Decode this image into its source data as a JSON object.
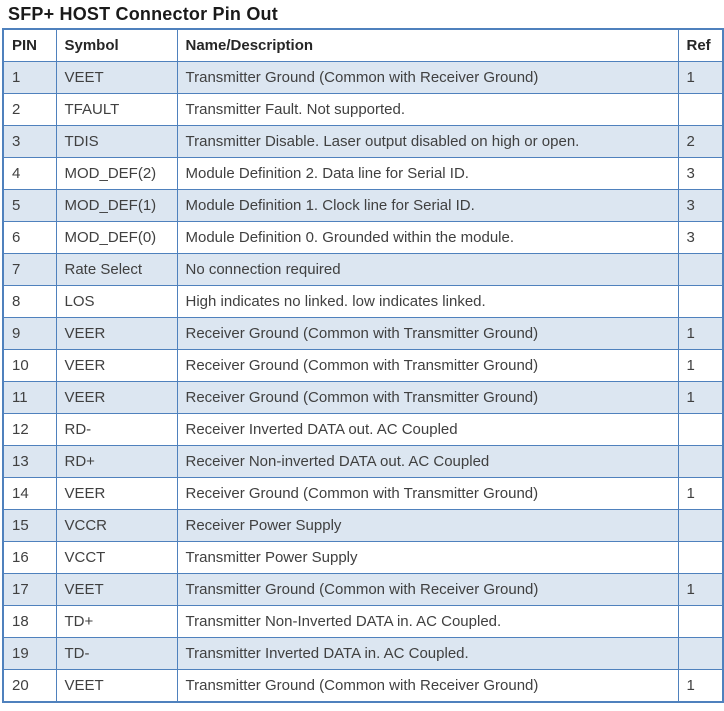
{
  "title": "SFP+ HOST Connector Pin Out",
  "colors": {
    "row_shade": "#dce6f1",
    "grid_border": "#4f81bd",
    "header_text": "#262626",
    "body_text": "#404040",
    "title_text": "#1a1a1a"
  },
  "table": {
    "headers": {
      "pin": "PIN",
      "symbol": "Symbol",
      "description": "Name/Description",
      "ref": "Ref"
    },
    "rows": [
      {
        "pin": "1",
        "symbol": "VEET",
        "description": "Transmitter Ground  (Common with Receiver Ground)",
        "ref": "1"
      },
      {
        "pin": "2",
        "symbol": "TFAULT",
        "description": "Transmitter Fault. Not supported.",
        "ref": ""
      },
      {
        "pin": "3",
        "symbol": "TDIS",
        "description": "Transmitter Disable. Laser output disabled on high or open.",
        "ref": "2"
      },
      {
        "pin": "4",
        "symbol": "MOD_DEF(2)",
        "description": "Module Definition 2. Data line for Serial ID.",
        "ref": "3"
      },
      {
        "pin": "5",
        "symbol": "MOD_DEF(1)",
        "description": "Module Definition 1. Clock line for Serial ID.",
        "ref": "3"
      },
      {
        "pin": "6",
        "symbol": "MOD_DEF(0)",
        "description": "Module Definition 0. Grounded within the module.",
        "ref": "3"
      },
      {
        "pin": "7",
        "symbol": "Rate Select",
        "description": "No connection required",
        "ref": ""
      },
      {
        "pin": "8",
        "symbol": "LOS",
        "description": "High indicates no linked.  low indicates linked.",
        "ref": ""
      },
      {
        "pin": "9",
        "symbol": "VEER",
        "description": "Receiver Ground  (Common with Transmitter Ground)",
        "ref": "1"
      },
      {
        "pin": "10",
        "symbol": "VEER",
        "description": "Receiver Ground  (Common with Transmitter Ground)",
        "ref": "1"
      },
      {
        "pin": "11",
        "symbol": "VEER",
        "description": "Receiver Ground  (Common with Transmitter Ground)",
        "ref": "1"
      },
      {
        "pin": "12",
        "symbol": "RD-",
        "description": "Receiver Inverted DATA out.  AC Coupled",
        "ref": ""
      },
      {
        "pin": "13",
        "symbol": "RD+",
        "description": "Receiver Non-inverted DATA out.  AC Coupled",
        "ref": ""
      },
      {
        "pin": "14",
        "symbol": "VEER",
        "description": "Receiver Ground  (Common with Transmitter Ground)",
        "ref": "1"
      },
      {
        "pin": "15",
        "symbol": "VCCR",
        "description": "Receiver Power Supply",
        "ref": ""
      },
      {
        "pin": "16",
        "symbol": "VCCT",
        "description": "Transmitter Power Supply",
        "ref": ""
      },
      {
        "pin": "17",
        "symbol": "VEET",
        "description": "Transmitter Ground  (Common with Receiver Ground)",
        "ref": "1"
      },
      {
        "pin": "18",
        "symbol": "TD+",
        "description": "Transmitter Non-Inverted DATA in. AC Coupled.",
        "ref": ""
      },
      {
        "pin": "19",
        "symbol": "TD-",
        "description": "Transmitter Inverted DATA in.  AC Coupled.",
        "ref": ""
      },
      {
        "pin": "20",
        "symbol": "VEET",
        "description": "Transmitter Ground  (Common with Receiver Ground)",
        "ref": "1"
      }
    ]
  }
}
